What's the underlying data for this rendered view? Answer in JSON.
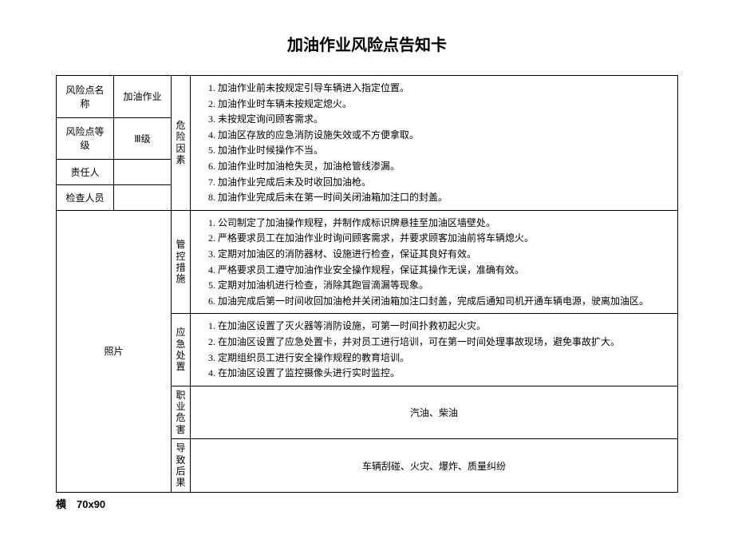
{
  "title": "加油作业风险点告知卡",
  "left_rows": [
    {
      "label": "风险点名称",
      "value": "加油作业"
    },
    {
      "label": "风险点等级",
      "value": "Ⅲ级"
    },
    {
      "label": "责任人",
      "value": ""
    },
    {
      "label": "检查人员",
      "value": ""
    }
  ],
  "photo_label": "照片",
  "sections": {
    "hazard": {
      "label": "危险因素",
      "items": [
        "加油作业前未按规定引导车辆进入指定位置。",
        "加油作业时车辆未按规定熄火。",
        "未按规定询问顾客需求。",
        "加油区存放的应急消防设施失效或不方便拿取。",
        "加油作业时候操作不当。",
        "加油作业时加油枪失灵，加油枪管线渗漏。",
        "加油作业完成后未及时收回加油枪。",
        "加油作业完成后未在第一时间关闭油箱加注口的封盖。"
      ]
    },
    "control": {
      "label": "管控措施",
      "items": [
        "公司制定了加油操作规程，并制作成标识牌悬挂至加油区墙壁处。",
        "严格要求员工在加油作业时询问顾客需求，并要求顾客加油前将车辆熄火。",
        "定期对加油区的消防器材、设施进行检查，保证其良好有效。",
        "严格要求员工遵守加油作业安全操作规程，保证其操作无误，准确有效。",
        "定期对加油机进行检查，消除其跑冒滴漏等现象。",
        "加油完成后第一时间收回加油枪并关闭油箱加注口封盖，完成后通知司机开通车辆电源，驶离加油区。"
      ]
    },
    "emergency": {
      "label": "应急处置",
      "items": [
        "在加油区设置了灭火器等消防设施，可第一时间扑救初起火灾。",
        "在加油区设置了应急处置卡，并对员工进行培训，可在第一时间处理事故现场，避免事故扩大。",
        "定期组织员工进行安全操作规程的教育培训。",
        "在加油区设置了监控摄像头进行实时监控。"
      ]
    },
    "occupational": {
      "label": "职业危害",
      "text": "汽油、柴油"
    },
    "consequence": {
      "label": "导致后果",
      "text": "车辆刮碰、火灾、爆炸、质量纠纷"
    }
  },
  "footer": "横　70x90"
}
